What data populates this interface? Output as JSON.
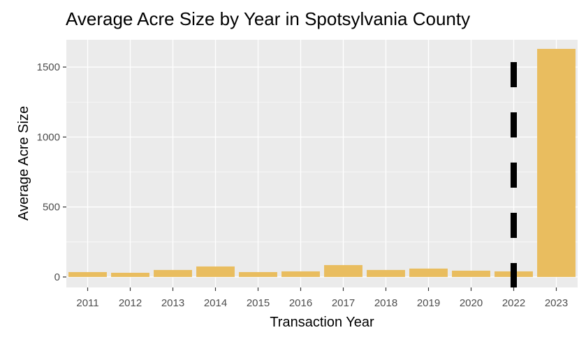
{
  "chart_data": {
    "type": "bar",
    "title": "Average Acre Size by Year in Spotsylvania County",
    "xlabel": "Transaction Year",
    "ylabel": "Average Acre Size",
    "categories": [
      "2011",
      "2012",
      "2013",
      "2014",
      "2015",
      "2016",
      "2017",
      "2018",
      "2019",
      "2020",
      "2022",
      "2023"
    ],
    "values": [
      35,
      30,
      50,
      75,
      35,
      40,
      85,
      50,
      60,
      45,
      40,
      1630
    ],
    "ylim": [
      -75,
      1695
    ],
    "yticks": [
      0,
      500,
      1000,
      1500
    ],
    "grid": true,
    "bar_color": "#E9BD5F",
    "panel_background": "#EBEBEB",
    "grid_color": "#FFFFFF",
    "vline": {
      "category": "2022",
      "style": "dashed",
      "color": "#000000"
    }
  }
}
